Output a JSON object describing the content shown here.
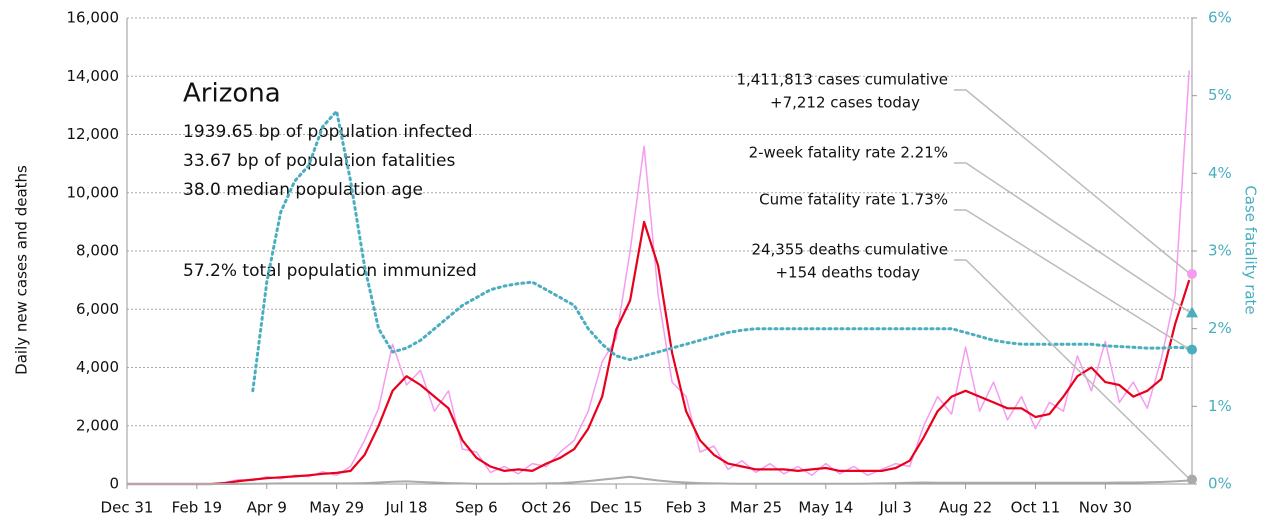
{
  "chart_data": {
    "type": "line",
    "title": "Arizona",
    "info": [
      "1939.65 bp of population infected",
      "33.67 bp of population fatalities",
      "38.0 median population age",
      "57.2% total population immunized"
    ],
    "ylabel": "Daily new cases and deaths",
    "y2label": "Case fatality rate",
    "x": [
      0,
      10,
      20,
      30,
      40,
      50,
      60,
      70,
      80,
      90,
      100,
      110,
      120,
      130,
      140,
      150,
      160,
      170,
      180,
      190,
      200,
      210,
      220,
      230,
      240,
      250,
      260,
      270,
      280,
      290,
      300,
      310,
      320,
      330,
      340,
      350,
      360,
      370,
      380,
      390,
      400,
      410,
      420,
      430,
      440,
      450,
      460,
      470,
      480,
      490,
      500,
      510,
      520,
      530,
      540,
      550,
      560,
      570,
      580,
      590,
      600,
      610,
      620,
      630,
      640,
      650,
      660,
      670,
      680,
      690,
      700,
      710,
      720,
      730,
      740,
      750,
      760
    ],
    "xlim": [
      0,
      762
    ],
    "xticks": [
      {
        "value": 0,
        "label": "Dec 31"
      },
      {
        "value": 50,
        "label": "Feb 19"
      },
      {
        "value": 100,
        "label": "Apr 9"
      },
      {
        "value": 150,
        "label": "May 29"
      },
      {
        "value": 200,
        "label": "Jul 18"
      },
      {
        "value": 250,
        "label": "Sep 6"
      },
      {
        "value": 300,
        "label": "Oct 26"
      },
      {
        "value": 350,
        "label": "Dec 15"
      },
      {
        "value": 400,
        "label": "Feb 3"
      },
      {
        "value": 450,
        "label": "Mar 25"
      },
      {
        "value": 500,
        "label": "May 14"
      },
      {
        "value": 550,
        "label": "Jul 3"
      },
      {
        "value": 600,
        "label": "Aug 22"
      },
      {
        "value": 650,
        "label": "Oct 11"
      },
      {
        "value": 700,
        "label": "Nov 30"
      }
    ],
    "ylim": [
      0,
      16000
    ],
    "yticks": [
      0,
      {
        "value": 2000,
        "label": "2,000"
      },
      {
        "value": 4000,
        "label": "4,000"
      },
      {
        "value": 6000,
        "label": "6,000"
      },
      {
        "value": 8000,
        "label": "8,000"
      },
      {
        "value": 10000,
        "label": "10,000"
      },
      {
        "value": 12000,
        "label": "12,000"
      },
      {
        "value": 14000,
        "label": "14,000"
      },
      {
        "value": 16000,
        "label": "16,000"
      }
    ],
    "y2lim": [
      0,
      6
    ],
    "y2ticks": [
      {
        "value": 0,
        "label": "0%"
      },
      {
        "value": 1,
        "label": "1%"
      },
      {
        "value": 2,
        "label": "2%"
      },
      {
        "value": 3,
        "label": "3%"
      },
      {
        "value": 4,
        "label": "4%"
      },
      {
        "value": 5,
        "label": "5%"
      },
      {
        "value": 6,
        "label": "6%"
      }
    ],
    "grid": true,
    "series": [
      {
        "name": "daily cases",
        "color": "#f59cf0",
        "values": [
          0,
          0,
          0,
          0,
          0,
          0,
          0,
          50,
          150,
          120,
          250,
          180,
          300,
          250,
          420,
          300,
          600,
          1500,
          2600,
          4800,
          3400,
          3900,
          2500,
          3200,
          1200,
          1100,
          400,
          600,
          350,
          700,
          600,
          1100,
          1500,
          2500,
          4200,
          5000,
          8000,
          11600,
          6500,
          3500,
          3000,
          1100,
          1300,
          500,
          800,
          400,
          700,
          350,
          600,
          300,
          700,
          350,
          600,
          300,
          500,
          700,
          600,
          2000,
          3000,
          2400,
          4700,
          2500,
          3500,
          2200,
          3000,
          1900,
          2800,
          2500,
          4400,
          3200,
          4900,
          2800,
          3500,
          2600,
          4300,
          6500,
          14200
        ]
      },
      {
        "name": "cases 7-day average",
        "color": "#e8001c",
        "values": [
          0,
          0,
          0,
          0,
          0,
          0,
          0,
          30,
          100,
          150,
          200,
          230,
          260,
          300,
          350,
          380,
          450,
          1000,
          2000,
          3200,
          3700,
          3400,
          3000,
          2600,
          1500,
          900,
          600,
          450,
          500,
          450,
          700,
          900,
          1200,
          1900,
          3000,
          5300,
          6300,
          9000,
          7500,
          4500,
          2500,
          1500,
          1000,
          700,
          600,
          500,
          500,
          500,
          450,
          500,
          550,
          450,
          450,
          450,
          450,
          550,
          800,
          1600,
          2500,
          3000,
          3200,
          3000,
          2800,
          2600,
          2600,
          2300,
          2400,
          3000,
          3700,
          4000,
          3500,
          3400,
          3000,
          3200,
          3600,
          5500,
          7000
        ]
      },
      {
        "name": "daily deaths",
        "color": "#aaaaaa",
        "values": [
          0,
          0,
          0,
          0,
          0,
          0,
          0,
          0,
          5,
          10,
          15,
          20,
          20,
          20,
          20,
          20,
          20,
          30,
          50,
          80,
          90,
          70,
          50,
          30,
          20,
          10,
          10,
          10,
          15,
          15,
          20,
          30,
          60,
          100,
          150,
          200,
          250,
          180,
          120,
          80,
          50,
          30,
          20,
          15,
          10,
          10,
          10,
          10,
          10,
          10,
          10,
          10,
          10,
          15,
          20,
          30,
          40,
          50,
          40,
          40,
          40,
          40,
          40,
          40,
          40,
          40,
          40,
          40,
          40,
          40,
          45,
          50,
          50,
          60,
          70,
          90,
          120
        ]
      },
      {
        "name": "case fatality rate",
        "color": "#4aaebf",
        "axis": "y2",
        "values": [
          null,
          null,
          null,
          null,
          null,
          null,
          null,
          null,
          null,
          1.2,
          2.6,
          3.5,
          3.9,
          4.1,
          4.6,
          4.8,
          3.9,
          2.8,
          2.0,
          1.7,
          1.75,
          1.85,
          2.0,
          2.15,
          2.3,
          2.4,
          2.5,
          2.55,
          2.58,
          2.6,
          2.5,
          2.4,
          2.3,
          2.0,
          1.8,
          1.65,
          1.6,
          1.65,
          1.7,
          1.75,
          1.8,
          1.85,
          1.9,
          1.95,
          1.98,
          2.0,
          2.0,
          2.0,
          2.0,
          2.0,
          2.0,
          2.0,
          2.0,
          2.0,
          2.0,
          2.0,
          2.0,
          2.0,
          2.0,
          2.0,
          1.95,
          1.9,
          1.85,
          1.82,
          1.8,
          1.8,
          1.8,
          1.8,
          1.8,
          1.8,
          1.78,
          1.77,
          1.76,
          1.75,
          1.75,
          1.76,
          1.75
        ]
      }
    ],
    "annotations": [
      {
        "text": [
          "1,411,813 cases cumulative",
          "+7,212 cases today"
        ],
        "value": 7212,
        "color": "#f59cf0"
      },
      {
        "text": [
          "2-week fatality rate 2.21%"
        ],
        "value": 2.21,
        "axis": "y2",
        "color": "#4aaebf"
      },
      {
        "text": [
          "Cume fatality rate 1.73%"
        ],
        "value": 1.73,
        "axis": "y2",
        "color": "#4aaebf"
      },
      {
        "text": [
          "24,355 deaths cumulative",
          "+154 deaths today"
        ],
        "value": 154,
        "color": "#aaaaaa"
      }
    ]
  }
}
